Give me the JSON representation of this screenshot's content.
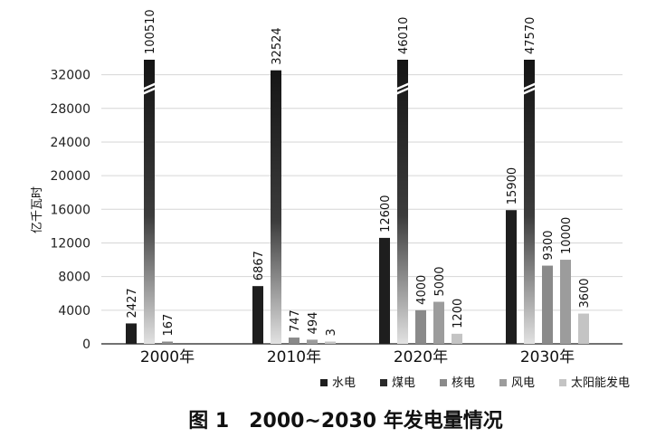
{
  "chart_data": {
    "type": "bar",
    "title": "图 1　2000~2030 年发电量情况",
    "ylabel": "亿千瓦时",
    "xlabel": "",
    "ylim": [
      0,
      34000
    ],
    "yticks": [
      0,
      4000,
      8000,
      12000,
      16000,
      20000,
      24000,
      28000,
      32000
    ],
    "ytick_labels": [
      "0",
      "4000",
      "8000",
      "12000",
      "16000",
      "20000",
      "24000",
      "28000",
      "32000"
    ],
    "axis_break": "series values above the axis range are drawn truncated with a break mark",
    "grid": true,
    "legend_position": "bottom-right",
    "categories": [
      "2000年",
      "2010年",
      "2020年",
      "2030年"
    ],
    "series": [
      {
        "name": "水电",
        "color": "#1e1e1e",
        "values": [
          2427,
          6867,
          12600,
          15900
        ]
      },
      {
        "name": "煤电",
        "color": "#2a2a2a",
        "values": [
          100510,
          32524,
          46010,
          47570
        ]
      },
      {
        "name": "核电",
        "color": "#8a8a8a",
        "values": [
          167,
          747,
          4000,
          9300
        ]
      },
      {
        "name": "风电",
        "color": "#9c9c9c",
        "values": [
          null,
          494,
          5000,
          10000
        ]
      },
      {
        "name": "太阳能发电",
        "color": "#c4c4c4",
        "values": [
          null,
          3,
          1200,
          3600
        ]
      }
    ]
  }
}
